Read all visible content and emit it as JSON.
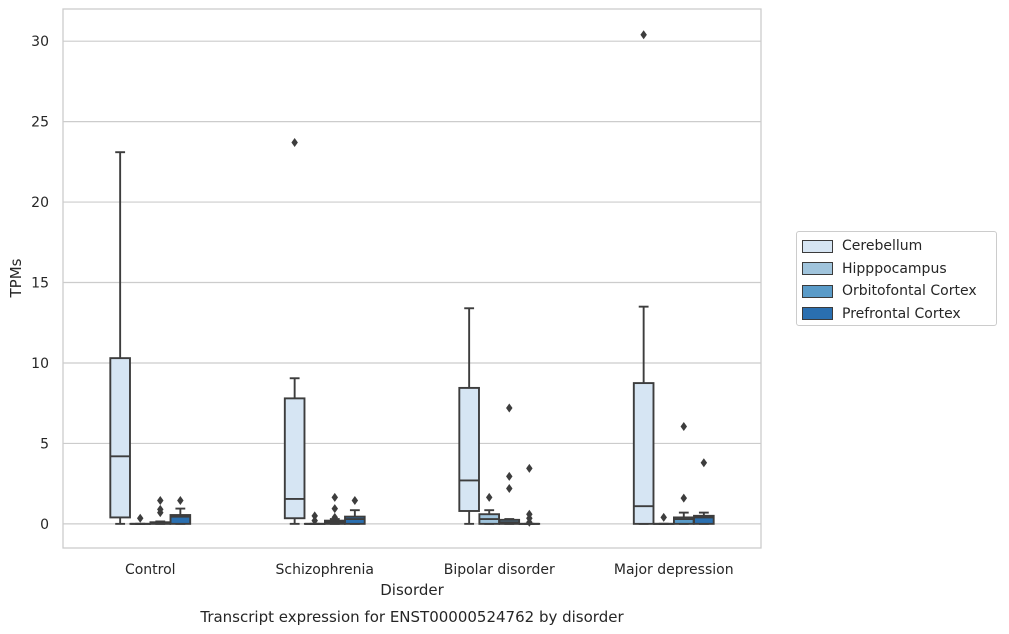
{
  "chart_data": {
    "type": "box",
    "title": "",
    "caption": "Transcript expression for ENST00000524762 by disorder",
    "xlabel": "Disorder",
    "ylabel": "TPMs",
    "ylim": [
      -1.5,
      32
    ],
    "yticks": [
      0,
      5,
      10,
      15,
      20,
      25,
      30
    ],
    "grid": "horizontal",
    "legend_position": "center-right outside",
    "categories": [
      "Control",
      "Schizophrenia",
      "Bipolar disorder",
      "Major depression"
    ],
    "series": [
      {
        "name": "Cerebellum",
        "color": "#d6e5f3",
        "boxes": [
          {
            "whislo": 0.0,
            "q1": 0.4,
            "med": 4.2,
            "q3": 10.3,
            "whishi": 23.1,
            "fliers": []
          },
          {
            "whislo": 0.0,
            "q1": 0.35,
            "med": 1.55,
            "q3": 7.8,
            "whishi": 9.05,
            "fliers": [
              23.7
            ]
          },
          {
            "whislo": 0.0,
            "q1": 0.8,
            "med": 2.7,
            "q3": 8.45,
            "whishi": 13.4,
            "fliers": []
          },
          {
            "whislo": 0.0,
            "q1": 0.0,
            "med": 1.1,
            "q3": 8.75,
            "whishi": 13.5,
            "fliers": [
              30.4
            ]
          }
        ]
      },
      {
        "name": "Hipppocampus",
        "color": "#a0c4dc",
        "boxes": [
          {
            "whislo": 0.0,
            "q1": 0.0,
            "med": 0.0,
            "q3": 0.0,
            "whishi": 0.0,
            "fliers": [
              0.35
            ]
          },
          {
            "whislo": 0.0,
            "q1": 0.0,
            "med": 0.0,
            "q3": 0.0,
            "whishi": 0.0,
            "fliers": [
              0.2,
              0.5
            ]
          },
          {
            "whislo": 0.0,
            "q1": 0.0,
            "med": 0.3,
            "q3": 0.6,
            "whishi": 0.85,
            "fliers": [
              1.65
            ]
          },
          {
            "whislo": 0.0,
            "q1": 0.0,
            "med": 0.0,
            "q3": 0.0,
            "whishi": 0.0,
            "fliers": [
              0.4
            ]
          }
        ]
      },
      {
        "name": "Orbitofontal Cortex",
        "color": "#5a9bc8",
        "boxes": [
          {
            "whislo": 0.0,
            "q1": 0.0,
            "med": 0.05,
            "q3": 0.1,
            "whishi": 0.15,
            "fliers": [
              0.7,
              0.9,
              1.45
            ]
          },
          {
            "whislo": 0.0,
            "q1": 0.0,
            "med": 0.1,
            "q3": 0.2,
            "whishi": 0.3,
            "fliers": [
              0.4,
              0.95,
              1.65
            ]
          },
          {
            "whislo": 0.0,
            "q1": 0.0,
            "med": 0.1,
            "q3": 0.25,
            "whishi": 0.3,
            "fliers": [
              2.2,
              2.95,
              7.2
            ]
          },
          {
            "whislo": 0.0,
            "q1": 0.0,
            "med": 0.3,
            "q3": 0.4,
            "whishi": 0.7,
            "fliers": [
              1.6,
              6.05
            ]
          }
        ]
      },
      {
        "name": "Prefrontal Cortex",
        "color": "#2a6fb0",
        "boxes": [
          {
            "whislo": 0.0,
            "q1": 0.0,
            "med": 0.45,
            "q3": 0.55,
            "whishi": 0.95,
            "fliers": [
              1.45
            ]
          },
          {
            "whislo": 0.0,
            "q1": 0.0,
            "med": 0.3,
            "q3": 0.45,
            "whishi": 0.85,
            "fliers": [
              1.45
            ]
          },
          {
            "whislo": 0.0,
            "q1": 0.0,
            "med": 0.0,
            "q3": 0.0,
            "whishi": 0.0,
            "fliers": [
              0.1,
              0.35,
              0.6,
              3.45
            ]
          },
          {
            "whislo": 0.0,
            "q1": 0.0,
            "med": 0.4,
            "q3": 0.5,
            "whishi": 0.7,
            "fliers": [
              3.8
            ]
          }
        ]
      }
    ]
  }
}
